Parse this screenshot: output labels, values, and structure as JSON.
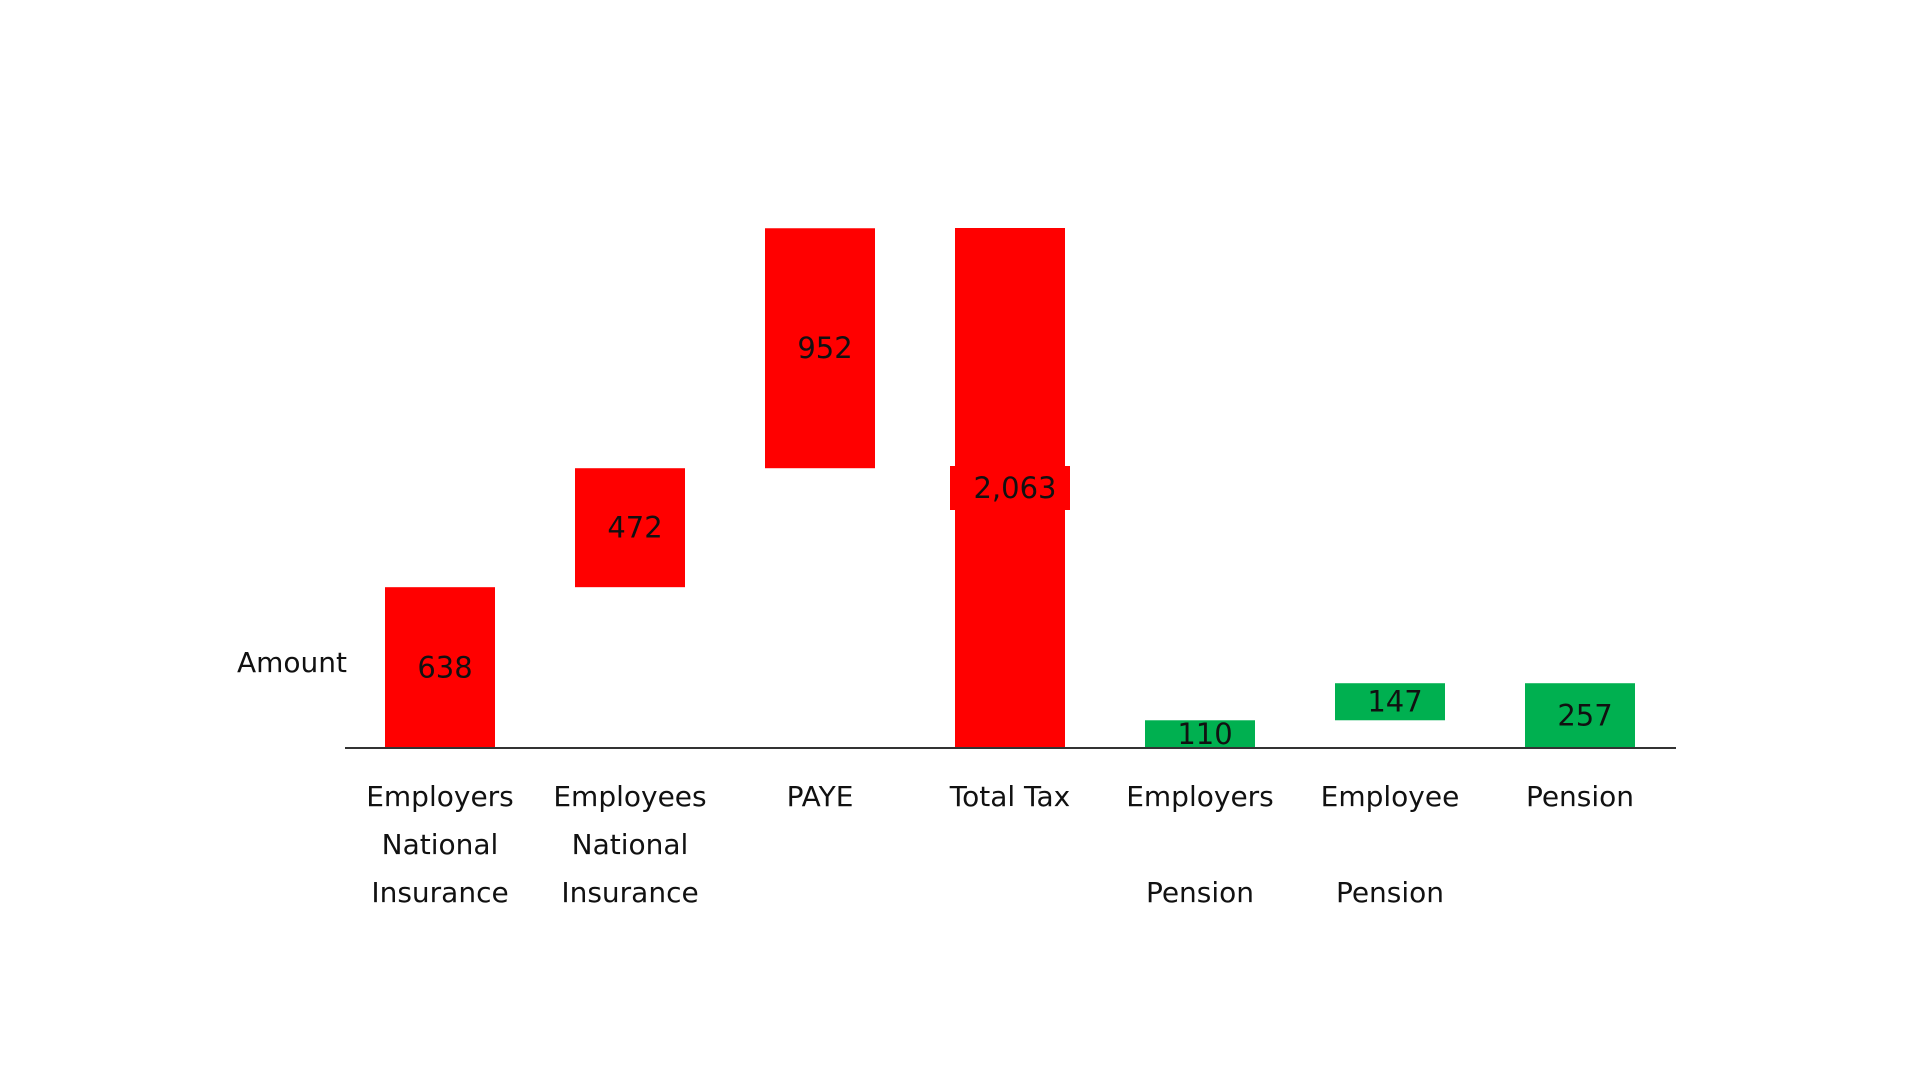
{
  "chart_data": {
    "type": "bar",
    "subtype": "waterfall",
    "title": "",
    "ylabel": "Amount",
    "xlabel": "",
    "ylim": [
      0,
      2063
    ],
    "grid": false,
    "legend": "none",
    "categories": [
      [
        "Employers",
        "National",
        "Insurance"
      ],
      [
        "Employees",
        "National",
        "Insurance"
      ],
      [
        "PAYE"
      ],
      [
        "Total Tax"
      ],
      [
        "Employers",
        "",
        "Pension"
      ],
      [
        "Employee",
        "",
        "Pension"
      ],
      [
        "Pension"
      ]
    ],
    "values": [
      638,
      472,
      952,
      2063,
      110,
      147,
      257
    ],
    "value_labels": [
      "638",
      "472",
      "952",
      "2,063",
      "110",
      "147",
      "257"
    ],
    "bar_start": [
      0,
      638,
      1110,
      0,
      0,
      110,
      0
    ],
    "colors": [
      "#ff0000",
      "#ff0000",
      "#ff0000",
      "#ff0000",
      "#00b050",
      "#00b050",
      "#00b050"
    ]
  }
}
